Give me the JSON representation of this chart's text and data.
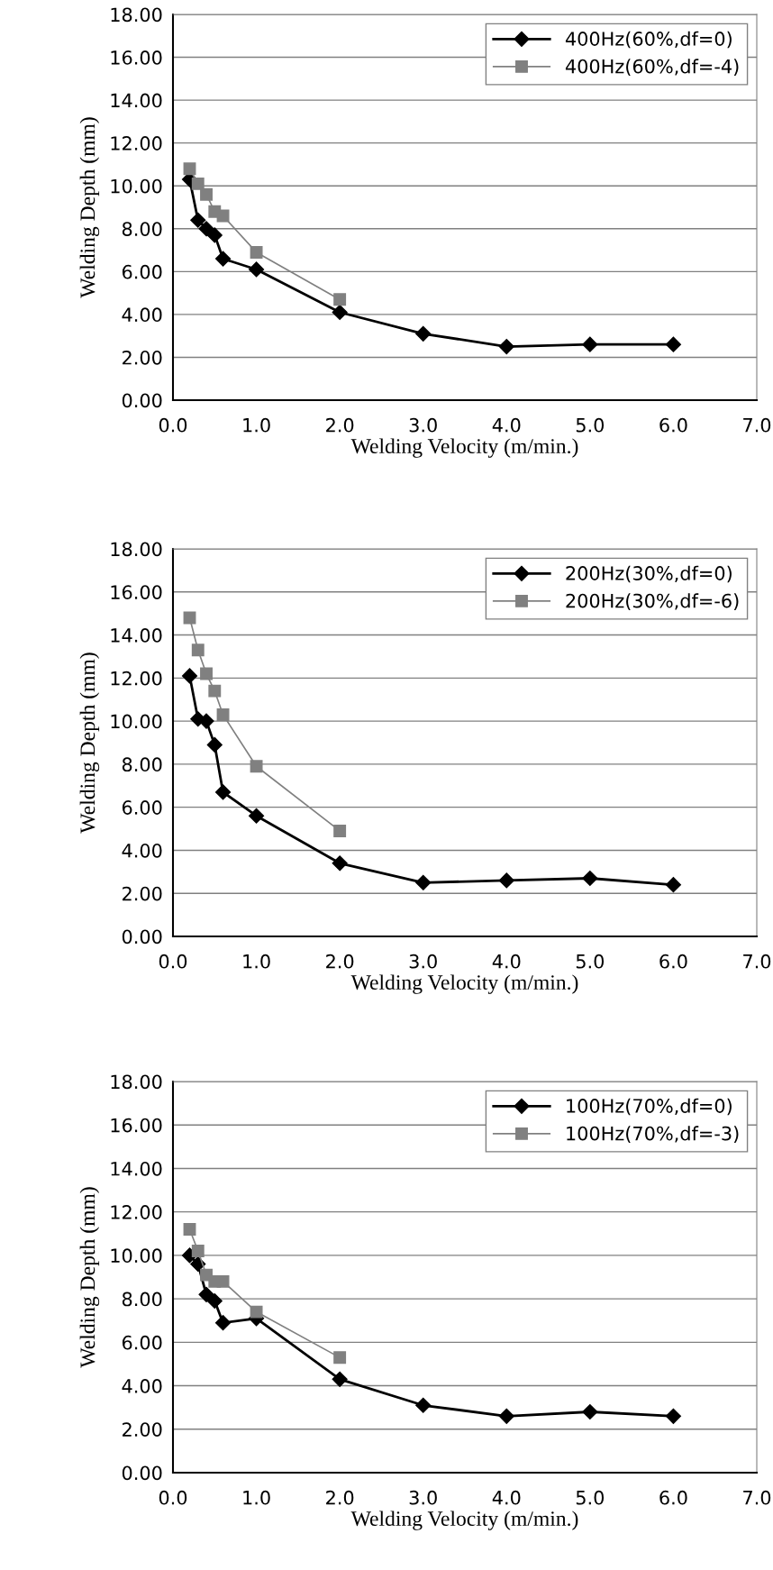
{
  "chart_data": [
    {
      "type": "line",
      "xlabel": "Welding Velocity (m/min.)",
      "ylabel": "Welding Depth (mm)",
      "xlim": [
        0,
        7
      ],
      "ylim": [
        0,
        18
      ],
      "xticks": [
        {
          "value": 0,
          "label": "0.0"
        },
        {
          "value": 1,
          "label": "1.0"
        },
        {
          "value": 2,
          "label": "2.0"
        },
        {
          "value": 3,
          "label": "3.0"
        },
        {
          "value": 4,
          "label": "4.0"
        },
        {
          "value": 5,
          "label": "5.0"
        },
        {
          "value": 6,
          "label": "6.0"
        },
        {
          "value": 7,
          "label": "7.0"
        }
      ],
      "yticks": [
        {
          "value": 0,
          "label": "0.00"
        },
        {
          "value": 2,
          "label": "2.00"
        },
        {
          "value": 4,
          "label": "4.00"
        },
        {
          "value": 6,
          "label": "6.00"
        },
        {
          "value": 8,
          "label": "8.00"
        },
        {
          "value": 10,
          "label": "10.00"
        },
        {
          "value": 12,
          "label": "12.00"
        },
        {
          "value": 14,
          "label": "14.00"
        },
        {
          "value": 16,
          "label": "16.00"
        },
        {
          "value": 18,
          "label": "18.00"
        }
      ],
      "grid": "y",
      "legend": "top right",
      "series": [
        {
          "name": "400Hz(60%,df=0)",
          "color": "#000000",
          "marker": "diamond",
          "x": [
            0.2,
            0.3,
            0.4,
            0.5,
            0.6,
            1,
            2,
            3,
            4,
            5,
            6
          ],
          "values": [
            10.3,
            8.4,
            8.0,
            7.7,
            6.6,
            6.1,
            4.1,
            3.1,
            2.5,
            2.6,
            2.6
          ]
        },
        {
          "name": "400Hz(60%,df=-4)",
          "color": "#808080",
          "marker": "square",
          "x": [
            0.2,
            0.3,
            0.4,
            0.5,
            0.6,
            1,
            2
          ],
          "values": [
            10.8,
            10.1,
            9.6,
            8.8,
            8.6,
            6.9,
            4.7
          ]
        }
      ]
    },
    {
      "type": "line",
      "xlabel": "Welding Velocity (m/min.)",
      "ylabel": "Welding Depth (mm)",
      "xlim": [
        0,
        7
      ],
      "ylim": [
        0,
        18
      ],
      "xticks": [
        {
          "value": 0,
          "label": "0.0"
        },
        {
          "value": 1,
          "label": "1.0"
        },
        {
          "value": 2,
          "label": "2.0"
        },
        {
          "value": 3,
          "label": "3.0"
        },
        {
          "value": 4,
          "label": "4.0"
        },
        {
          "value": 5,
          "label": "5.0"
        },
        {
          "value": 6,
          "label": "6.0"
        },
        {
          "value": 7,
          "label": "7.0"
        }
      ],
      "yticks": [
        {
          "value": 0,
          "label": "0.00"
        },
        {
          "value": 2,
          "label": "2.00"
        },
        {
          "value": 4,
          "label": "4.00"
        },
        {
          "value": 6,
          "label": "6.00"
        },
        {
          "value": 8,
          "label": "8.00"
        },
        {
          "value": 10,
          "label": "10.00"
        },
        {
          "value": 12,
          "label": "12.00"
        },
        {
          "value": 14,
          "label": "14.00"
        },
        {
          "value": 16,
          "label": "16.00"
        },
        {
          "value": 18,
          "label": "18.00"
        }
      ],
      "grid": "y",
      "legend": "top right",
      "series": [
        {
          "name": "200Hz(30%,df=0)",
          "color": "#000000",
          "marker": "diamond",
          "x": [
            0.2,
            0.3,
            0.4,
            0.5,
            0.6,
            1,
            2,
            3,
            4,
            5,
            6
          ],
          "values": [
            12.1,
            10.1,
            10.0,
            8.9,
            6.7,
            5.6,
            3.4,
            2.5,
            2.6,
            2.7,
            2.4
          ]
        },
        {
          "name": "200Hz(30%,df=-6)",
          "color": "#808080",
          "marker": "square",
          "x": [
            0.2,
            0.3,
            0.4,
            0.5,
            0.6,
            1,
            2
          ],
          "values": [
            14.8,
            13.3,
            12.2,
            11.4,
            10.3,
            7.9,
            4.9
          ]
        }
      ]
    },
    {
      "type": "line",
      "xlabel": "Welding Velocity (m/min.)",
      "ylabel": "Welding Depth (mm)",
      "xlim": [
        0,
        7
      ],
      "ylim": [
        0,
        18
      ],
      "xticks": [
        {
          "value": 0,
          "label": "0.0"
        },
        {
          "value": 1,
          "label": "1.0"
        },
        {
          "value": 2,
          "label": "2.0"
        },
        {
          "value": 3,
          "label": "3.0"
        },
        {
          "value": 4,
          "label": "4.0"
        },
        {
          "value": 5,
          "label": "5.0"
        },
        {
          "value": 6,
          "label": "6.0"
        },
        {
          "value": 7,
          "label": "7.0"
        }
      ],
      "yticks": [
        {
          "value": 0,
          "label": "0.00"
        },
        {
          "value": 2,
          "label": "2.00"
        },
        {
          "value": 4,
          "label": "4.00"
        },
        {
          "value": 6,
          "label": "6.00"
        },
        {
          "value": 8,
          "label": "8.00"
        },
        {
          "value": 10,
          "label": "10.00"
        },
        {
          "value": 12,
          "label": "12.00"
        },
        {
          "value": 14,
          "label": "14.00"
        },
        {
          "value": 16,
          "label": "16.00"
        },
        {
          "value": 18,
          "label": "18.00"
        }
      ],
      "grid": "y",
      "legend": "top right",
      "series": [
        {
          "name": "100Hz(70%,df=0)",
          "color": "#000000",
          "marker": "diamond",
          "x": [
            0.2,
            0.3,
            0.4,
            0.5,
            0.6,
            1,
            2,
            3,
            4,
            5,
            6
          ],
          "values": [
            10.0,
            9.6,
            8.2,
            7.9,
            6.9,
            7.1,
            4.3,
            3.1,
            2.6,
            2.8,
            2.6
          ]
        },
        {
          "name": "100Hz(70%,df=-3)",
          "color": "#808080",
          "marker": "square",
          "x": [
            0.2,
            0.3,
            0.4,
            0.5,
            0.6,
            1,
            2
          ],
          "values": [
            11.2,
            10.2,
            9.1,
            8.8,
            8.8,
            7.4,
            5.3
          ]
        }
      ]
    }
  ]
}
